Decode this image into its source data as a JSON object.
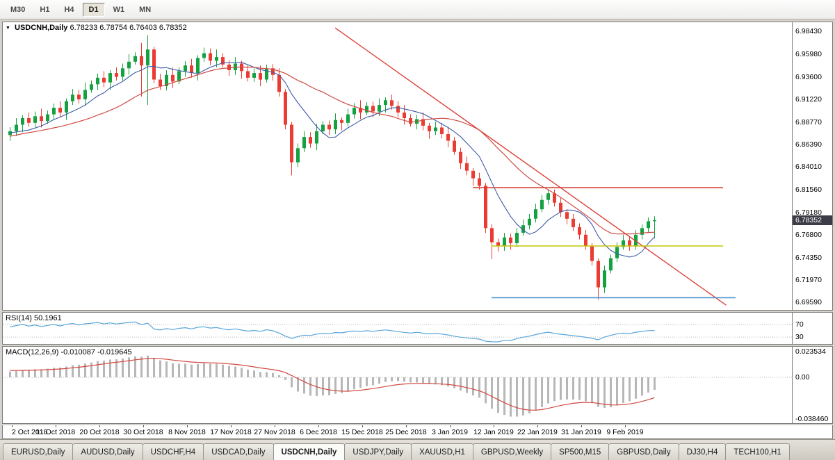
{
  "toolbar": {
    "timeframes": [
      {
        "label": "M30",
        "active": false
      },
      {
        "label": "H1",
        "active": false
      },
      {
        "label": "H4",
        "active": false
      },
      {
        "label": "D1",
        "active": true
      },
      {
        "label": "W1",
        "active": false
      },
      {
        "label": "MN",
        "active": false
      }
    ]
  },
  "chart": {
    "title": "USDCNH,Daily",
    "ohlc_text": "6.78233 6.78754 6.76403 6.78352",
    "price_badge": "6.78352",
    "axis_labels": [
      "6.98430",
      "6.95980",
      "6.93600",
      "6.91220",
      "6.88770",
      "6.86390",
      "6.84010",
      "6.81560",
      "6.79180",
      "6.76800",
      "6.74350",
      "6.71970",
      "6.69590"
    ]
  },
  "indicators": {
    "rsi": {
      "header": "RSI(14) 50.1961",
      "period": 14,
      "levels": [
        {
          "label": "70",
          "value": 70
        },
        {
          "label": "30",
          "value": 30
        }
      ]
    },
    "macd": {
      "header": "MACD(12,26,9) -0.010087 -0.019645",
      "fast": 12,
      "slow": 26,
      "signal": 9,
      "range": [
        0.028,
        -0.042
      ],
      "axis_labels": [
        {
          "label": "0.023534",
          "value": 0.023534
        },
        {
          "label": "0.00",
          "value": 0
        },
        {
          "label": "-0.038460",
          "value": -0.03846
        }
      ]
    }
  },
  "chart_data": {
    "type": "candlestick",
    "symbol": "USDCNH",
    "timeframe": "Daily",
    "last_price": 6.78352,
    "y_range": [
      6.994,
      6.688
    ],
    "label_every": 7,
    "date_labels": [
      "2 Oct 2018",
      "11 Oct 2018",
      "20 Oct 2018",
      "30 Oct 2018",
      "8 Nov 2018",
      "17 Nov 2018",
      "27 Nov 2018",
      "6 Dec 2018",
      "15 Dec 2018",
      "25 Dec 2018",
      "3 Jan 2019",
      "12 Jan 2019",
      "22 Jan 2019",
      "31 Jan 2019",
      "9 Feb 2019"
    ],
    "warmup_closes": [
      6.846,
      6.851,
      6.848,
      6.855,
      6.852,
      6.858,
      6.862,
      6.859,
      6.865,
      6.868,
      6.864,
      6.87,
      6.873,
      6.869,
      6.875,
      6.878,
      6.874,
      6.879,
      6.882,
      6.878,
      6.883,
      6.88,
      6.876,
      6.872,
      6.87,
      6.874
    ],
    "candles": [
      [
        6.874,
        6.8825,
        6.868,
        6.878
      ],
      [
        6.878,
        6.892,
        6.873,
        6.885
      ],
      [
        6.885,
        6.895,
        6.877,
        6.892
      ],
      [
        6.892,
        6.898,
        6.883,
        6.887
      ],
      [
        6.887,
        6.899,
        6.8825,
        6.894
      ],
      [
        6.894,
        6.902,
        6.882,
        6.889
      ],
      [
        6.889,
        6.9,
        6.886,
        6.896
      ],
      [
        6.896,
        6.9075,
        6.89,
        6.903
      ],
      [
        6.903,
        6.91,
        6.893,
        6.898
      ],
      [
        6.898,
        6.913,
        6.89,
        6.91
      ],
      [
        6.91,
        6.923,
        6.906,
        6.917
      ],
      [
        6.917,
        6.922,
        6.9075,
        6.912
      ],
      [
        6.912,
        6.93,
        6.905,
        6.922
      ],
      [
        6.922,
        6.932,
        6.919,
        6.928
      ],
      [
        6.928,
        6.9395,
        6.922,
        6.935
      ],
      [
        6.935,
        6.942,
        6.925,
        6.93
      ],
      [
        6.93,
        6.943,
        6.922,
        6.94
      ],
      [
        6.94,
        6.946,
        6.932,
        6.936
      ],
      [
        6.936,
        6.95,
        6.9315,
        6.945
      ],
      [
        6.945,
        6.96,
        6.938,
        6.952
      ],
      [
        6.952,
        6.962,
        6.949,
        6.958
      ],
      [
        6.958,
        6.972,
        6.915,
        6.948
      ],
      [
        6.948,
        6.98,
        6.906,
        6.965
      ],
      [
        6.965,
        6.968,
        6.929,
        6.933
      ],
      [
        6.933,
        6.939,
        6.922,
        6.926
      ],
      [
        6.926,
        6.943,
        6.9215,
        6.938
      ],
      [
        6.938,
        6.946,
        6.924,
        6.931
      ],
      [
        6.931,
        6.946,
        6.928,
        6.942
      ],
      [
        6.942,
        6.9525,
        6.936,
        6.948
      ],
      [
        6.948,
        6.955,
        6.935,
        6.94
      ],
      [
        6.94,
        6.959,
        6.932,
        6.956
      ],
      [
        6.956,
        6.967,
        6.952,
        6.961
      ],
      [
        6.961,
        6.966,
        6.9485,
        6.953
      ],
      [
        6.953,
        6.965,
        6.946,
        6.957
      ],
      [
        6.957,
        6.961,
        6.946,
        6.949
      ],
      [
        6.949,
        6.9535,
        6.937,
        6.943
      ],
      [
        6.943,
        6.957,
        6.938,
        6.95
      ],
      [
        6.95,
        6.953,
        6.934,
        6.942
      ],
      [
        6.942,
        6.948,
        6.931,
        6.935
      ],
      [
        6.935,
        6.945,
        6.9305,
        6.94
      ],
      [
        6.94,
        6.948,
        6.926,
        6.933
      ],
      [
        6.933,
        6.949,
        6.93,
        6.945
      ],
      [
        6.945,
        6.9495,
        6.932,
        6.938
      ],
      [
        6.938,
        6.945,
        6.915,
        6.92
      ],
      [
        6.92,
        6.923,
        6.88,
        6.885
      ],
      [
        6.885,
        6.888,
        6.831,
        6.845
      ],
      [
        6.845,
        6.865,
        6.84,
        6.86
      ],
      [
        6.86,
        6.878,
        6.856,
        6.872
      ],
      [
        6.872,
        6.877,
        6.8605,
        6.865
      ],
      [
        6.865,
        6.886,
        6.858,
        6.878
      ],
      [
        6.878,
        6.889,
        6.875,
        6.885
      ],
      [
        6.885,
        6.8895,
        6.874,
        6.88
      ],
      [
        6.88,
        6.897,
        6.875,
        6.89
      ],
      [
        6.89,
        6.893,
        6.879,
        6.887
      ],
      [
        6.887,
        6.902,
        6.883,
        6.896
      ],
      [
        6.896,
        6.908,
        6.8915,
        6.903
      ],
      [
        6.903,
        6.911,
        6.891,
        6.898
      ],
      [
        6.898,
        6.909,
        6.895,
        6.905
      ],
      [
        6.905,
        6.9095,
        6.893,
        6.899
      ],
      [
        6.899,
        6.913,
        6.894,
        6.906
      ],
      [
        6.906,
        6.914,
        6.898,
        6.911
      ],
      [
        6.911,
        6.917,
        6.901,
        6.905
      ],
      [
        6.905,
        6.91,
        6.8935,
        6.898
      ],
      [
        6.898,
        6.906,
        6.885,
        6.892
      ],
      [
        6.892,
        6.896,
        6.883,
        6.886
      ],
      [
        6.886,
        6.8955,
        6.88,
        6.891
      ],
      [
        6.891,
        6.898,
        6.879,
        6.884
      ],
      [
        6.884,
        6.887,
        6.87,
        6.878
      ],
      [
        6.878,
        6.888,
        6.874,
        6.882
      ],
      [
        6.882,
        6.887,
        6.8705,
        6.875
      ],
      [
        6.875,
        6.883,
        6.861,
        6.868
      ],
      [
        6.868,
        6.872,
        6.853,
        6.856
      ],
      [
        6.856,
        6.8605,
        6.838,
        6.844
      ],
      [
        6.844,
        6.851,
        6.831,
        6.836
      ],
      [
        6.836,
        6.839,
        6.82,
        6.828
      ],
      [
        6.828,
        6.834,
        6.816,
        6.82
      ],
      [
        6.82,
        6.823,
        6.77,
        6.775
      ],
      [
        6.775,
        6.779,
        6.742,
        6.76
      ],
      [
        6.76,
        6.764,
        6.75,
        6.756
      ],
      [
        6.756,
        6.77,
        6.751,
        6.765
      ],
      [
        6.765,
        6.769,
        6.752,
        6.759
      ],
      [
        6.759,
        6.775,
        6.755,
        6.77
      ],
      [
        6.77,
        6.784,
        6.767,
        6.778
      ],
      [
        6.778,
        6.79,
        6.7735,
        6.785
      ],
      [
        6.785,
        6.801,
        6.781,
        6.795
      ],
      [
        6.795,
        6.81,
        6.792,
        6.805
      ],
      [
        6.805,
        6.816,
        6.8,
        6.812
      ],
      [
        6.812,
        6.816,
        6.798,
        6.802
      ],
      [
        6.802,
        6.807,
        6.787,
        6.792
      ],
      [
        6.792,
        6.795,
        6.779,
        6.785
      ],
      [
        6.785,
        6.79,
        6.772,
        6.776
      ],
      [
        6.776,
        6.78,
        6.763,
        6.768
      ],
      [
        6.768,
        6.773,
        6.752,
        6.756
      ],
      [
        6.756,
        6.759,
        6.735,
        6.74
      ],
      [
        6.74,
        6.743,
        6.699,
        6.712
      ],
      [
        6.712,
        6.735,
        6.706,
        6.73
      ],
      [
        6.73,
        6.747,
        6.727,
        6.743
      ],
      [
        6.743,
        6.76,
        6.739,
        6.755
      ],
      [
        6.755,
        6.768,
        6.752,
        6.762
      ],
      [
        6.762,
        6.766,
        6.751,
        6.756
      ],
      [
        6.756,
        6.773,
        6.752,
        6.768
      ],
      [
        6.768,
        6.779,
        6.763,
        6.775
      ],
      [
        6.775,
        6.7863,
        6.77,
        6.7823
      ],
      [
        6.78233,
        6.78754,
        6.76403,
        6.78352
      ]
    ],
    "overlays": {
      "ma_fast_period": 8,
      "ma_slow_period": 21,
      "trendline": {
        "from_bar": 52,
        "from_price": 6.988,
        "to_bar": 114.5,
        "to_price": 6.693
      },
      "hlines": [
        {
          "name": "resistance-line-red",
          "price": 6.818,
          "color": "#d6443c",
          "from_bar": 74,
          "to_bar": 114
        },
        {
          "name": "support-line-yellow",
          "price": 6.756,
          "color": "#c6c600",
          "from_bar": 77,
          "to_bar": 114
        },
        {
          "name": "support-line-blue",
          "price": 6.701,
          "color": "#4f94cd",
          "from_bar": 77,
          "to_bar": 116
        }
      ]
    }
  },
  "tabs": [
    {
      "label": "EURUSD,Daily",
      "active": false
    },
    {
      "label": "AUDUSD,Daily",
      "active": false
    },
    {
      "label": "USDCHF,H4",
      "active": false
    },
    {
      "label": "USDCAD,Daily",
      "active": false
    },
    {
      "label": "USDCNH,Daily",
      "active": true
    },
    {
      "label": "USDJPY,Daily",
      "active": false
    },
    {
      "label": "XAUUSD,H1",
      "active": false
    },
    {
      "label": "GBPUSD,Weekly",
      "active": false
    },
    {
      "label": "SP500,M15",
      "active": false
    },
    {
      "label": "GBPUSD,Daily",
      "active": false
    },
    {
      "label": "DJ30,H4",
      "active": false
    },
    {
      "label": "TECH100,H1",
      "active": false
    }
  ],
  "colors": {
    "candle_up": "#14a241",
    "candle_down": "#ea3c32",
    "ma_fast": "#3b5ba9",
    "ma_slow": "#cf4a42",
    "trendline": "#dd4038",
    "rsi_line": "#58a6d8",
    "macd_hist": "#b7b7b7",
    "macd_signal": "#d3473f",
    "badge_bg": "#3c3c46"
  }
}
